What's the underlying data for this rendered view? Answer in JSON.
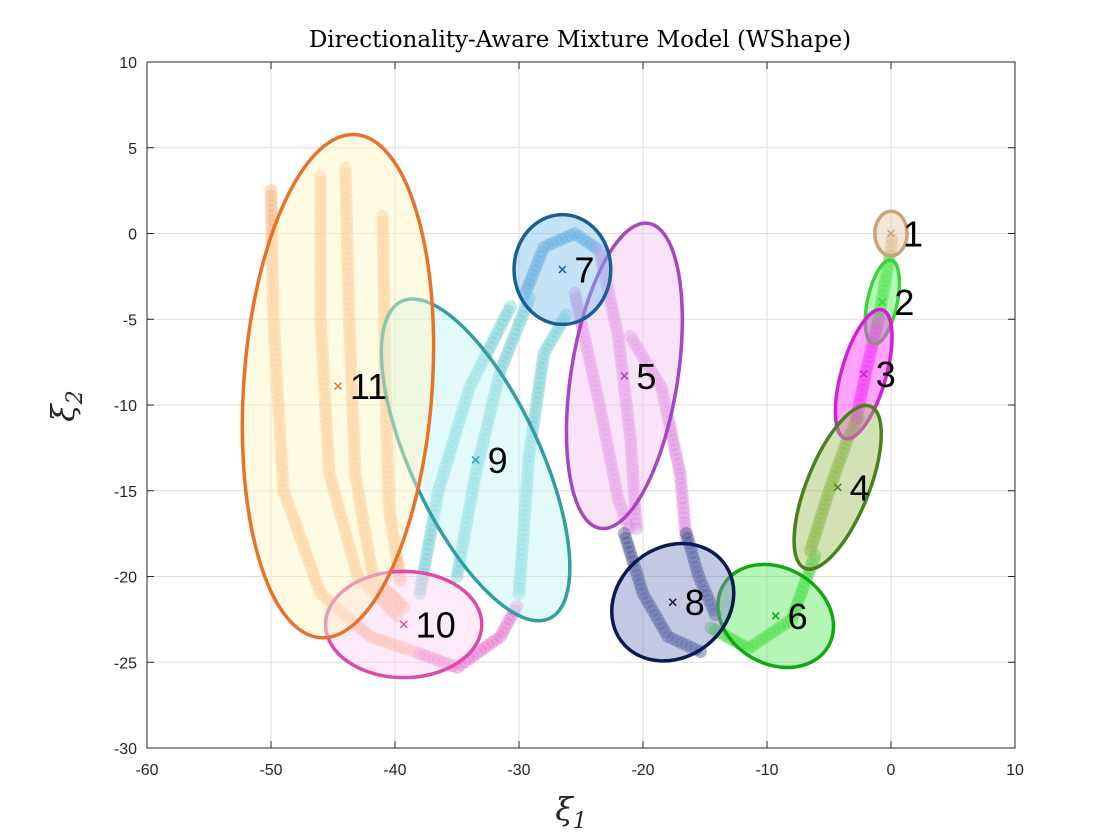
{
  "chart_data": {
    "type": "scatter",
    "title": "Directionality-Aware Mixture Model (WShape)",
    "xlabel": {
      "symbol": "ξ",
      "subscript": "1"
    },
    "ylabel": {
      "symbol": "ξ",
      "subscript": "2"
    },
    "xlim": [
      -60,
      10
    ],
    "ylim": [
      -30,
      10
    ],
    "xticks": [
      -60,
      -50,
      -40,
      -30,
      -20,
      -10,
      0,
      10
    ],
    "yticks": [
      -30,
      -25,
      -20,
      -15,
      -10,
      -5,
      0,
      5,
      10
    ],
    "grid": true,
    "components": [
      {
        "label": "1",
        "mean": [
          0.0,
          0.0
        ],
        "sx": 1.3,
        "sy": 1.3,
        "angle": 0,
        "color": "#c8a47a",
        "fill": "#e6c9a8",
        "pointColor": "#d9b38c"
      },
      {
        "label": "2",
        "mean": [
          -0.7,
          -4.0
        ],
        "sx": 1.2,
        "sy": 2.5,
        "angle": 12,
        "color": "#3fd13f",
        "fill": "#5ef05e",
        "pointColor": "#4fe04f"
      },
      {
        "label": "3",
        "mean": [
          -2.2,
          -8.2
        ],
        "sx": 1.8,
        "sy": 3.9,
        "angle": 16,
        "color": "#d11fd1",
        "fill": "#ff33ff",
        "pointColor": "#e64ae6"
      },
      {
        "label": "4",
        "mean": [
          -4.3,
          -14.8
        ],
        "sx": 2.5,
        "sy": 5.1,
        "angle": 22,
        "color": "#4c7f1f",
        "fill": "#9cbf5c",
        "pointColor": "#86b64a"
      },
      {
        "label": "5",
        "mean": [
          -21.5,
          -8.3
        ],
        "sx": 4.3,
        "sy": 9.0,
        "angle": 9,
        "color": "#a646c0",
        "fill": "#f2c2f2",
        "pointColor": "#de8ee0"
      },
      {
        "label": "6",
        "mean": [
          -9.3,
          -22.3
        ],
        "sx": 4.9,
        "sy": 2.8,
        "angle": 30,
        "color": "#12a812",
        "fill": "#5ae85a",
        "pointColor": "#46d846"
      },
      {
        "label": "7",
        "mean": [
          -26.5,
          -2.1
        ],
        "sx": 3.9,
        "sy": 3.2,
        "angle": 0,
        "color": "#1b5e96",
        "fill": "#7fc2ea",
        "pointColor": "#5a9fd4"
      },
      {
        "label": "8",
        "mean": [
          -17.6,
          -21.5
        ],
        "sx": 5.2,
        "sy": 3.2,
        "angle": -38,
        "color": "#0a1a52",
        "fill": "#7d87c0",
        "pointColor": "#4a5590"
      },
      {
        "label": "9",
        "mean": [
          -33.5,
          -13.2
        ],
        "sx": 5.2,
        "sy": 10.2,
        "angle": -25,
        "color": "#2f9f9f",
        "fill": "#c0f3f6",
        "pointColor": "#7fd0d8"
      },
      {
        "label": "10",
        "mean": [
          -39.3,
          -22.8
        ],
        "sx": 6.3,
        "sy": 3.1,
        "angle": 0,
        "color": "#d94ca8",
        "fill": "#ffd1f2",
        "pointColor": "#e87ad0"
      },
      {
        "label": "11",
        "mean": [
          -44.6,
          -8.9
        ],
        "sx": 7.6,
        "sy": 14.7,
        "angle": 4,
        "color": "#e8722a",
        "fill": "#fff7c2",
        "pointColor": "#f9b98a"
      }
    ],
    "trajectories": [
      {
        "color": "#f9b98a",
        "points": [
          [
            -50,
            2.5
          ],
          [
            -49.8,
            -5
          ],
          [
            -49,
            -15
          ],
          [
            -46,
            -21
          ],
          [
            -42,
            -23.5
          ],
          [
            -38,
            -24.5
          ]
        ]
      },
      {
        "color": "#f9b98a",
        "points": [
          [
            -46,
            3.3
          ],
          [
            -46,
            -5
          ],
          [
            -45.3,
            -14
          ],
          [
            -43,
            -20
          ],
          [
            -39.5,
            -22.5
          ]
        ]
      },
      {
        "color": "#f9b98a",
        "points": [
          [
            -44,
            3.8
          ],
          [
            -43.7,
            -5
          ],
          [
            -43.2,
            -14
          ],
          [
            -41.8,
            -20
          ],
          [
            -39,
            -22
          ]
        ]
      },
      {
        "color": "#f9b98a",
        "points": [
          [
            -41,
            1
          ],
          [
            -40.8,
            -8
          ],
          [
            -40.5,
            -16
          ],
          [
            -39.5,
            -20.5
          ]
        ]
      },
      {
        "color": "#e87ad0",
        "points": [
          [
            -38,
            -24.5
          ],
          [
            -35,
            -25.3
          ],
          [
            -31.5,
            -23.5
          ],
          [
            -30,
            -21.5
          ]
        ]
      },
      {
        "color": "#7fd0d8",
        "points": [
          [
            -38,
            -21
          ],
          [
            -36.5,
            -15
          ],
          [
            -34,
            -9
          ],
          [
            -30.5,
            -4
          ]
        ]
      },
      {
        "color": "#7fd0d8",
        "points": [
          [
            -35,
            -20
          ],
          [
            -33.5,
            -14
          ],
          [
            -31.5,
            -8
          ],
          [
            -29,
            -3.5
          ]
        ]
      },
      {
        "color": "#7fd0d8",
        "points": [
          [
            -30,
            -21
          ],
          [
            -29.2,
            -13
          ],
          [
            -28,
            -7
          ],
          [
            -26,
            -4.5
          ]
        ]
      },
      {
        "color": "#5a9fd4",
        "points": [
          [
            -29.5,
            -3.5
          ],
          [
            -28,
            -0.8
          ],
          [
            -25.5,
            0
          ],
          [
            -23.5,
            -1
          ]
        ]
      },
      {
        "color": "#de8ee0",
        "points": [
          [
            -23.5,
            -1
          ],
          [
            -22,
            -6
          ],
          [
            -21,
            -12
          ],
          [
            -20.5,
            -17.5
          ]
        ]
      },
      {
        "color": "#de8ee0",
        "points": [
          [
            -25.5,
            -3.5
          ],
          [
            -23.5,
            -10
          ],
          [
            -22,
            -15.5
          ],
          [
            -21,
            -17.5
          ]
        ]
      },
      {
        "color": "#de8ee0",
        "points": [
          [
            -21,
            -6
          ],
          [
            -18.5,
            -9
          ],
          [
            -17,
            -14
          ],
          [
            -16.5,
            -18
          ]
        ]
      },
      {
        "color": "#4a5590",
        "points": [
          [
            -21.5,
            -17.5
          ],
          [
            -20,
            -21
          ],
          [
            -18,
            -23.5
          ],
          [
            -15,
            -24.5
          ]
        ]
      },
      {
        "color": "#4a5590",
        "points": [
          [
            -16.5,
            -17.5
          ],
          [
            -15.5,
            -20
          ],
          [
            -14,
            -22.5
          ]
        ]
      },
      {
        "color": "#46d846",
        "points": [
          [
            -14.5,
            -23
          ],
          [
            -11.5,
            -24.2
          ],
          [
            -8,
            -22.5
          ],
          [
            -6,
            -18.5
          ]
        ]
      },
      {
        "color": "#86b64a",
        "points": [
          [
            -6.5,
            -18.5
          ],
          [
            -5,
            -15
          ],
          [
            -3.5,
            -12
          ],
          [
            -2.5,
            -10.5
          ]
        ]
      },
      {
        "color": "#e64ae6",
        "points": [
          [
            -2.8,
            -10.8
          ],
          [
            -2,
            -8
          ],
          [
            -1,
            -5
          ]
        ]
      },
      {
        "color": "#4fe04f",
        "points": [
          [
            -1,
            -5
          ],
          [
            -0.4,
            -2.5
          ],
          [
            0,
            -1
          ]
        ]
      },
      {
        "color": "#d9b38c",
        "points": [
          [
            0,
            -1
          ],
          [
            0.1,
            0
          ]
        ]
      }
    ]
  }
}
